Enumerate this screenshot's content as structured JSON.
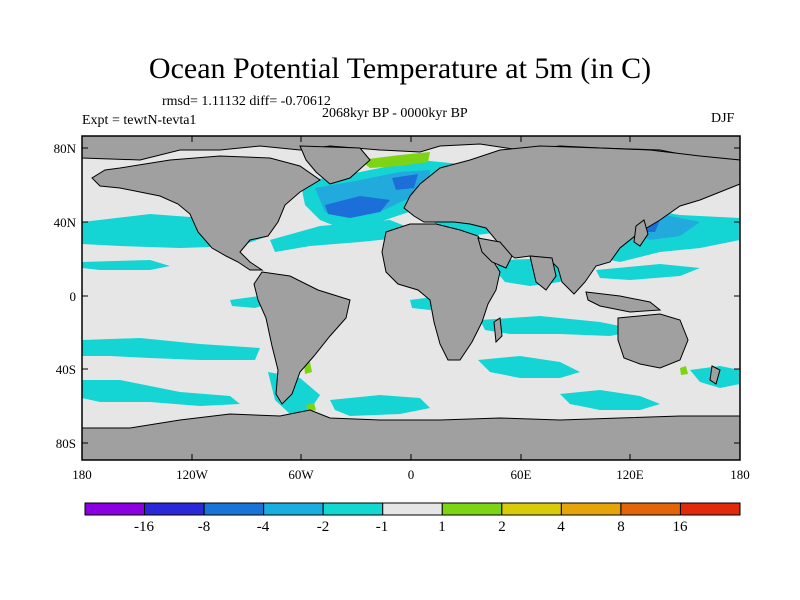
{
  "title": "Ocean Potential Temperature at 5m (in C)",
  "stats_text": "rmsd= 1.11132 diff= -0.70612",
  "period_text": "2068kyr BP - 0000kyr BP",
  "experiment_text": "Expt = tewtN-tevta1",
  "season": "DJF",
  "lat_ticks": [
    "80N",
    "40N",
    "0",
    "40S",
    "80S"
  ],
  "lon_ticks": [
    "180",
    "120W",
    "60W",
    "0",
    "60E",
    "120E",
    "180"
  ],
  "colorbar": {
    "labels": [
      "-16",
      "-8",
      "-4",
      "-2",
      "-1",
      "1",
      "2",
      "4",
      "8",
      "16"
    ],
    "colors": [
      "#8a00e0",
      "#2b28d8",
      "#1874d6",
      "#1aaee0",
      "#12d8d0",
      "#e6e6e6",
      "#7cd414",
      "#d8cc0a",
      "#e4a40a",
      "#e4640a",
      "#e02a0a"
    ]
  },
  "colors": {
    "land": "#a0a0a0",
    "ocean_neutral": "#e6e6e6",
    "cool_light": "#14d4d4",
    "cool_mid": "#22aadd",
    "cool_strong": "#1c6fd9",
    "warm_light": "#7cd414"
  }
}
